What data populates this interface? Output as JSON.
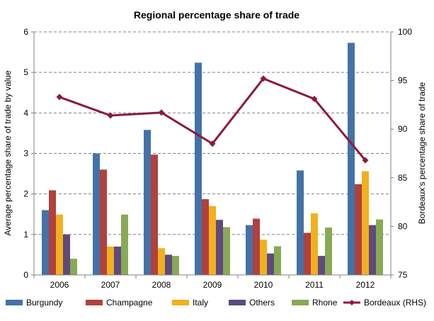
{
  "chart_data": {
    "type": "bar",
    "title": "Regional percentage share of trade",
    "categories": [
      "2006",
      "2007",
      "2008",
      "2009",
      "2010",
      "2011",
      "2012"
    ],
    "ylabel": "Average percentage share of trade by value",
    "ylabel_right": "Bordeaux's percentage share of trade",
    "ylim": [
      0,
      6
    ],
    "yticks": [
      "0",
      "1",
      "2",
      "3",
      "4",
      "5",
      "6"
    ],
    "ylim_right": [
      75,
      100
    ],
    "yticks_right": [
      "75",
      "80",
      "85",
      "90",
      "95",
      "100"
    ],
    "grid": "horizontal dashed",
    "legend_position": "bottom",
    "series": [
      {
        "name": "Burgundy",
        "color": "#4472A8",
        "axis": "left",
        "type": "bar",
        "values": [
          1.6,
          3.0,
          3.58,
          5.24,
          1.23,
          2.58,
          5.73
        ]
      },
      {
        "name": "Champagne",
        "color": "#B0413E",
        "axis": "left",
        "type": "bar",
        "values": [
          2.09,
          2.6,
          2.97,
          1.87,
          1.39,
          1.04,
          2.24
        ]
      },
      {
        "name": "Italy",
        "color": "#F2B01E",
        "axis": "left",
        "type": "bar",
        "values": [
          1.49,
          0.7,
          0.66,
          1.7,
          0.87,
          1.52,
          2.56
        ]
      },
      {
        "name": "Others",
        "color": "#5E4A7D",
        "axis": "left",
        "type": "bar",
        "values": [
          1.0,
          0.7,
          0.5,
          1.36,
          0.53,
          0.47,
          1.23
        ]
      },
      {
        "name": "Rhone",
        "color": "#88A955",
        "axis": "left",
        "type": "bar",
        "values": [
          0.4,
          1.49,
          0.47,
          1.18,
          0.71,
          1.17,
          1.37
        ]
      },
      {
        "name": "Bordeaux (RHS)",
        "color": "#8B1A3C",
        "axis": "right",
        "type": "line",
        "values": [
          93.3,
          91.4,
          91.7,
          88.5,
          95.2,
          93.1,
          86.8
        ]
      }
    ]
  }
}
